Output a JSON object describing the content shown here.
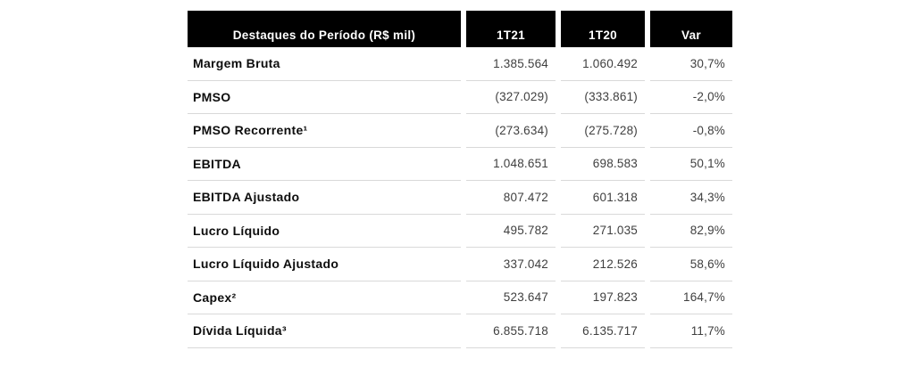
{
  "chart_data": {
    "type": "table",
    "title": "Destaques do Período (R$ mil)",
    "columns": [
      "Destaques do Período (R$ mil)",
      "1T21",
      "1T20",
      "Var"
    ],
    "rows": [
      [
        "Margem Bruta",
        "1.385.564",
        "1.060.492",
        "30,7%"
      ],
      [
        "PMSO",
        "(327.029)",
        "(333.861)",
        "-2,0%"
      ],
      [
        "PMSO Recorrente¹",
        "(273.634)",
        "(275.728)",
        "-0,8%"
      ],
      [
        "EBITDA",
        "1.048.651",
        "698.583",
        "50,1%"
      ],
      [
        "EBITDA Ajustado",
        "807.472",
        "601.318",
        "34,3%"
      ],
      [
        "Lucro Líquido",
        "495.782",
        "271.035",
        "82,9%"
      ],
      [
        "Lucro Líquido Ajustado",
        "337.042",
        "212.526",
        "58,6%"
      ],
      [
        "Capex²",
        "523.647",
        "197.823",
        "164,7%"
      ],
      [
        "Dívida Líquida³",
        "6.855.718",
        "6.135.717",
        "11,7%"
      ]
    ],
    "footnote_markers": [
      "¹",
      "²",
      "³"
    ],
    "layout": {
      "grid": "off",
      "header_alignment": "center-bottom",
      "value_alignment": "right"
    },
    "colors": {
      "header_bg": "#000000",
      "header_text": "#ffffff",
      "row_separator": "#d9d9d9",
      "label_text": "#0d0d0d",
      "value_text": "#3f3f3f",
      "background": "#ffffff"
    }
  }
}
